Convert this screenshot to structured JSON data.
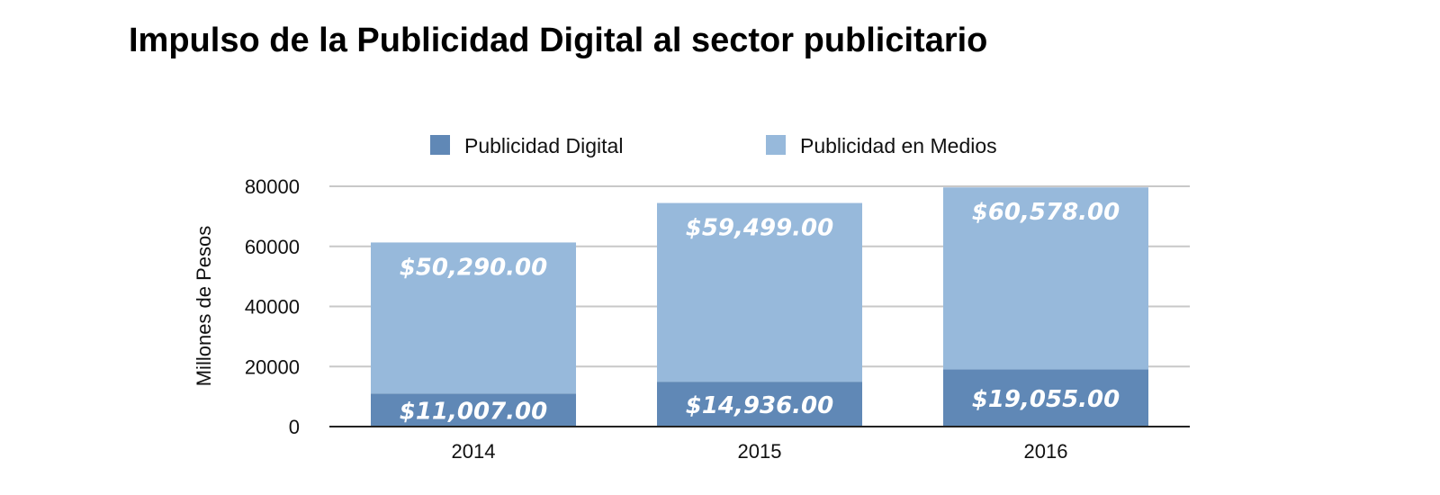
{
  "chart_data": {
    "type": "bar",
    "stacked": true,
    "title": "Impulso de la Publicidad Digital al sector publicitario",
    "ylabel": "Millones de Pesos",
    "xlabel": "",
    "ylim": [
      0,
      80000
    ],
    "yticks": [
      "0",
      "20000",
      "40000",
      "60000",
      "80000"
    ],
    "categories": [
      "2014",
      "2015",
      "2016"
    ],
    "grid": true,
    "legend": "top",
    "series": [
      {
        "name": "Publicidad Digital",
        "color": "#6088b6",
        "values": [
          11007,
          14936,
          19055
        ],
        "labels": [
          "$11,007.00",
          "$14,936.00",
          "$19,055.00"
        ]
      },
      {
        "name": "Publicidad en Medios",
        "color": "#97b9db",
        "values": [
          50290,
          59499,
          60578
        ],
        "labels": [
          "$50,290.00",
          "$59,499.00",
          "$60,578.00"
        ]
      }
    ]
  }
}
